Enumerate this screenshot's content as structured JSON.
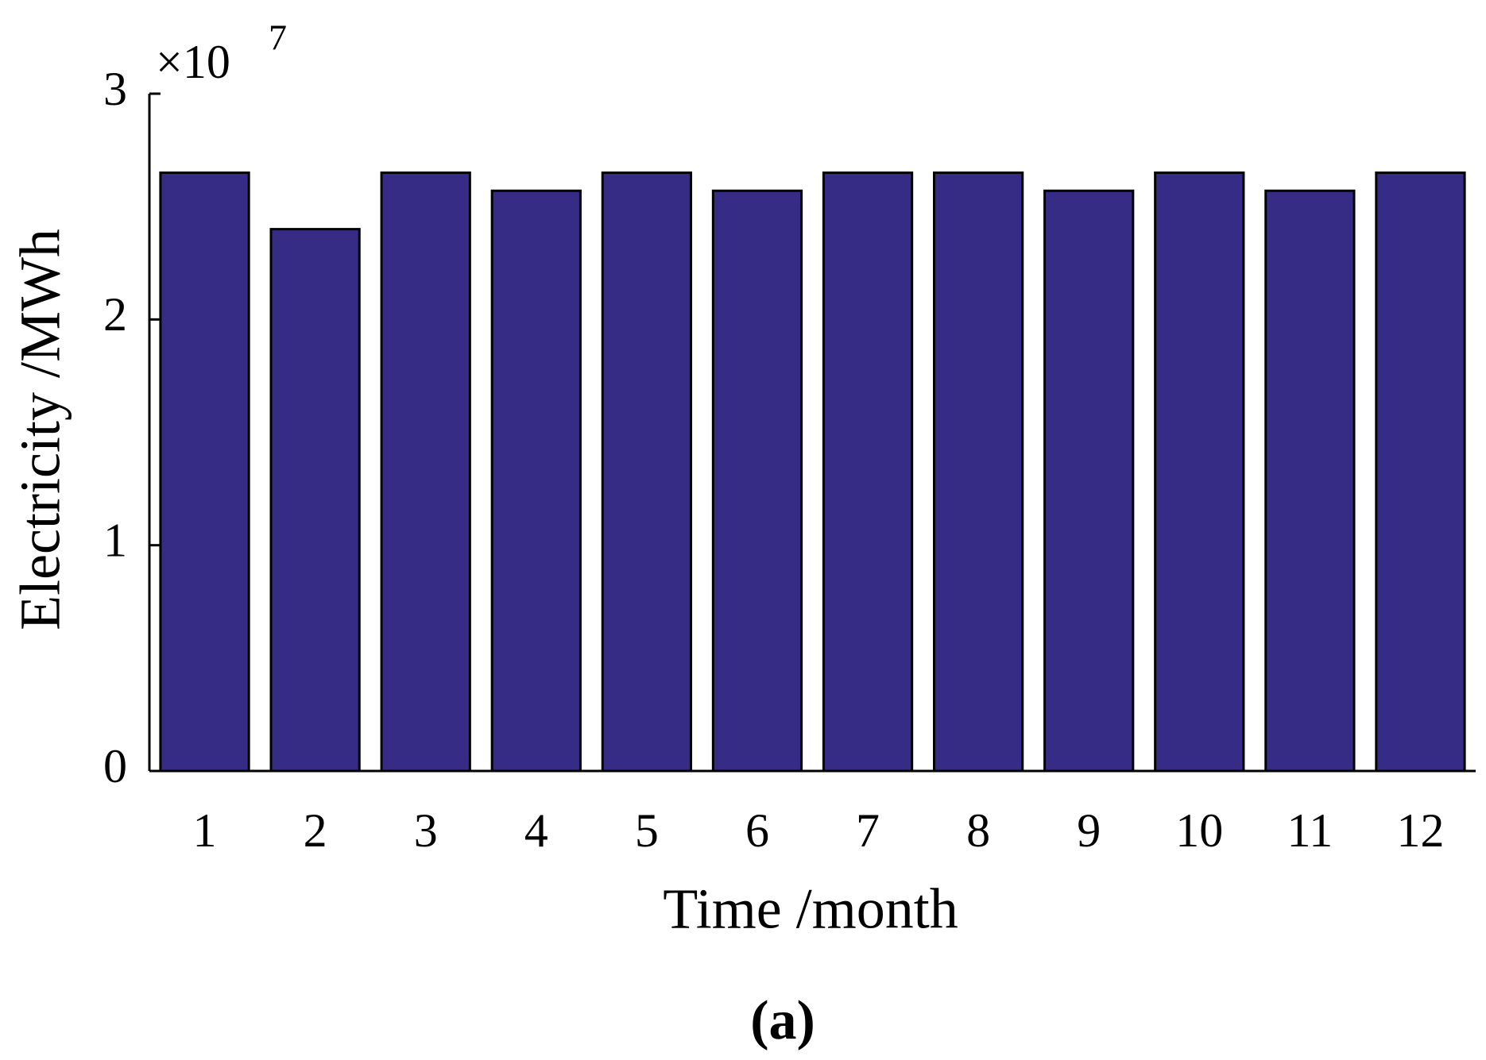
{
  "chart_data": {
    "type": "bar",
    "x_label": "Time /month",
    "y_label": "Electricity /MWh",
    "y_multiplier": {
      "base": "×10",
      "exponent": "7"
    },
    "caption": "(a)",
    "categories": [
      "1",
      "2",
      "3",
      "4",
      "5",
      "6",
      "7",
      "8",
      "9",
      "10",
      "11",
      "12"
    ],
    "values": [
      2.65,
      2.4,
      2.65,
      2.57,
      2.65,
      2.57,
      2.65,
      2.65,
      2.57,
      2.65,
      2.57,
      2.65
    ],
    "color": "#372c85",
    "ylim": [
      0,
      3
    ],
    "yticks": [
      0,
      1,
      2,
      3
    ],
    "grid": false
  }
}
